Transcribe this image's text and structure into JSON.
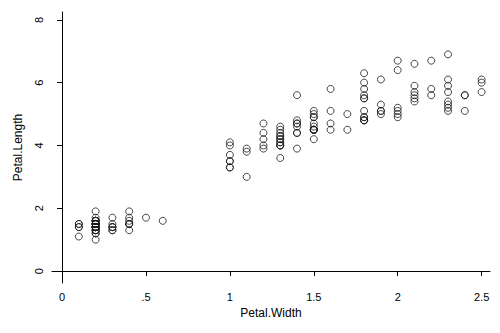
{
  "chart_data": {
    "type": "scatter",
    "x_label": "Petal.Width",
    "y_label": "Petal.Length",
    "x": [
      0.2,
      0.2,
      0.2,
      0.2,
      0.2,
      0.4,
      0.3,
      0.2,
      0.2,
      0.1,
      0.2,
      0.2,
      0.1,
      0.1,
      0.2,
      0.4,
      0.4,
      0.3,
      0.3,
      0.3,
      0.2,
      0.4,
      0.2,
      0.5,
      0.2,
      0.2,
      0.4,
      0.2,
      0.2,
      0.2,
      0.2,
      0.4,
      0.1,
      0.2,
      0.2,
      0.2,
      0.2,
      0.1,
      0.2,
      0.2,
      0.3,
      0.3,
      0.2,
      0.6,
      0.4,
      0.3,
      0.2,
      0.2,
      0.2,
      0.2,
      1.4,
      1.5,
      1.5,
      1.3,
      1.5,
      1.3,
      1.6,
      1.0,
      1.3,
      1.4,
      1.0,
      1.5,
      1.0,
      1.4,
      1.3,
      1.4,
      1.5,
      1.0,
      1.5,
      1.1,
      1.8,
      1.3,
      1.5,
      1.2,
      1.3,
      1.4,
      1.4,
      1.7,
      1.5,
      1.0,
      1.1,
      1.0,
      1.2,
      1.6,
      1.5,
      1.6,
      1.5,
      1.3,
      1.3,
      1.3,
      1.2,
      1.4,
      1.2,
      1.0,
      1.3,
      1.2,
      1.3,
      1.3,
      1.1,
      1.3,
      2.5,
      1.9,
      2.1,
      1.8,
      2.2,
      2.1,
      1.7,
      1.8,
      1.8,
      2.5,
      2.0,
      1.9,
      2.1,
      2.0,
      2.4,
      2.3,
      1.8,
      2.2,
      2.3,
      1.5,
      2.3,
      2.0,
      2.0,
      1.8,
      2.1,
      1.8,
      1.8,
      1.8,
      2.1,
      1.6,
      1.9,
      2.0,
      2.2,
      1.5,
      1.4,
      2.3,
      2.4,
      1.8,
      1.8,
      2.1,
      2.4,
      2.3,
      1.9,
      2.3,
      2.5,
      2.3,
      1.9,
      2.0,
      2.3,
      1.8
    ],
    "values": [
      1.4,
      1.4,
      1.3,
      1.5,
      1.4,
      1.7,
      1.4,
      1.5,
      1.4,
      1.5,
      1.5,
      1.6,
      1.4,
      1.1,
      1.2,
      1.5,
      1.3,
      1.4,
      1.7,
      1.5,
      1.7,
      1.5,
      1.0,
      1.7,
      1.9,
      1.6,
      1.6,
      1.5,
      1.4,
      1.6,
      1.6,
      1.5,
      1.5,
      1.4,
      1.5,
      1.2,
      1.3,
      1.4,
      1.3,
      1.5,
      1.3,
      1.3,
      1.3,
      1.6,
      1.9,
      1.4,
      1.6,
      1.4,
      1.5,
      1.4,
      4.7,
      4.5,
      4.9,
      4.0,
      4.6,
      4.5,
      4.7,
      3.3,
      4.6,
      3.9,
      3.5,
      4.2,
      4.0,
      4.7,
      3.6,
      4.4,
      4.5,
      4.1,
      4.5,
      3.9,
      4.8,
      4.0,
      4.9,
      4.7,
      4.3,
      4.4,
      4.8,
      5.0,
      4.5,
      3.5,
      3.8,
      3.7,
      3.9,
      5.1,
      4.5,
      4.5,
      4.7,
      4.4,
      4.1,
      4.0,
      4.4,
      4.6,
      4.0,
      3.3,
      4.2,
      4.2,
      4.2,
      4.3,
      3.0,
      4.1,
      6.0,
      5.1,
      5.9,
      5.6,
      5.8,
      6.6,
      4.5,
      6.3,
      5.8,
      6.1,
      5.1,
      5.3,
      5.5,
      5.0,
      5.1,
      5.3,
      5.5,
      6.7,
      6.9,
      5.0,
      5.7,
      4.9,
      6.7,
      4.9,
      5.7,
      6.0,
      4.8,
      4.9,
      5.6,
      5.8,
      6.1,
      6.4,
      5.6,
      5.1,
      5.6,
      6.1,
      5.6,
      5.5,
      4.8,
      5.4,
      5.6,
      5.1,
      5.1,
      5.9,
      5.7,
      5.2,
      5.0,
      5.2,
      5.4,
      5.1
    ],
    "xlim": [
      -0.06,
      2.55
    ],
    "xticks": [
      0,
      {
        "value": 0.5,
        "label": ".5"
      },
      1,
      1.5,
      2,
      2.5
    ],
    "ylim": [
      -0.38,
      8.25
    ],
    "yticks": [
      0,
      2,
      4,
      6,
      8
    ],
    "grid": false,
    "color": "#1a1a1a",
    "marker": "circle_hollow"
  }
}
